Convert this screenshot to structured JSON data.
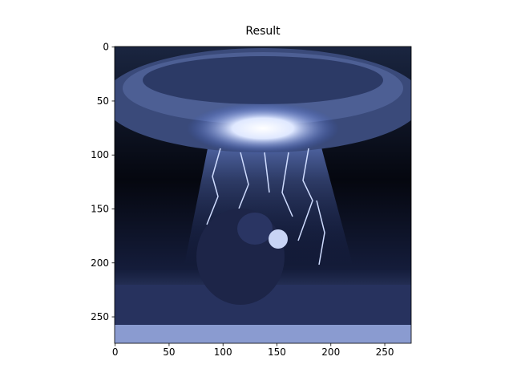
{
  "chart_data": {
    "type": "image",
    "title": "Result",
    "xlim": [
      -0.5,
      274.5
    ],
    "ylim": [
      274.5,
      -0.5
    ],
    "xticks": [
      0,
      50,
      100,
      150,
      200,
      250
    ],
    "yticks": [
      0,
      50,
      100,
      150,
      200,
      250
    ]
  }
}
